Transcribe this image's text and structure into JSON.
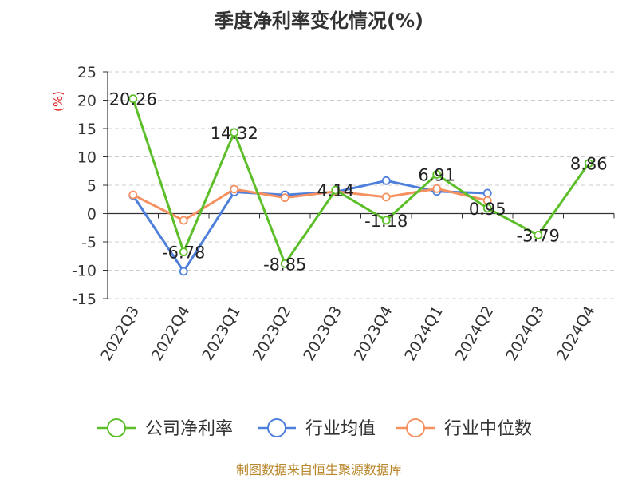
{
  "chart_data": {
    "type": "line",
    "title": "季度净利率变化情况(%)",
    "ylabel": "(%)",
    "xlabel": "",
    "ylim": [
      -15,
      25
    ],
    "yticks": [
      25,
      20,
      15,
      10,
      5,
      0,
      -5,
      -10,
      -15
    ],
    "grid": true,
    "legend_position": "bottom",
    "categories": [
      "2022Q3",
      "2022Q4",
      "2023Q1",
      "2023Q2",
      "2023Q3",
      "2023Q4",
      "2024Q1",
      "2024Q2",
      "2024Q3",
      "2024Q4"
    ],
    "series": [
      {
        "name": "公司净利率",
        "color": "#5cbf29",
        "values": [
          20.26,
          -6.78,
          14.32,
          -8.85,
          4.14,
          -1.18,
          6.91,
          0.95,
          -3.79,
          8.86
        ],
        "labels": [
          "20.26",
          "-6.78",
          "14.32",
          "-8.85",
          "4.14",
          "-1.18",
          "6.91",
          "0.95",
          "-3.79",
          "8.86"
        ]
      },
      {
        "name": "行业均值",
        "color": "#4d7fdb",
        "values": [
          3.2,
          -10.2,
          3.8,
          3.3,
          3.8,
          5.8,
          3.9,
          3.6,
          null,
          null
        ]
      },
      {
        "name": "行业中位数",
        "color": "#f59160",
        "values": [
          3.3,
          -1.2,
          4.3,
          2.8,
          3.9,
          2.9,
          4.4,
          2.3,
          null,
          null
        ]
      }
    ]
  },
  "footer": {
    "source": "制图数据来自恒生聚源数据库"
  }
}
